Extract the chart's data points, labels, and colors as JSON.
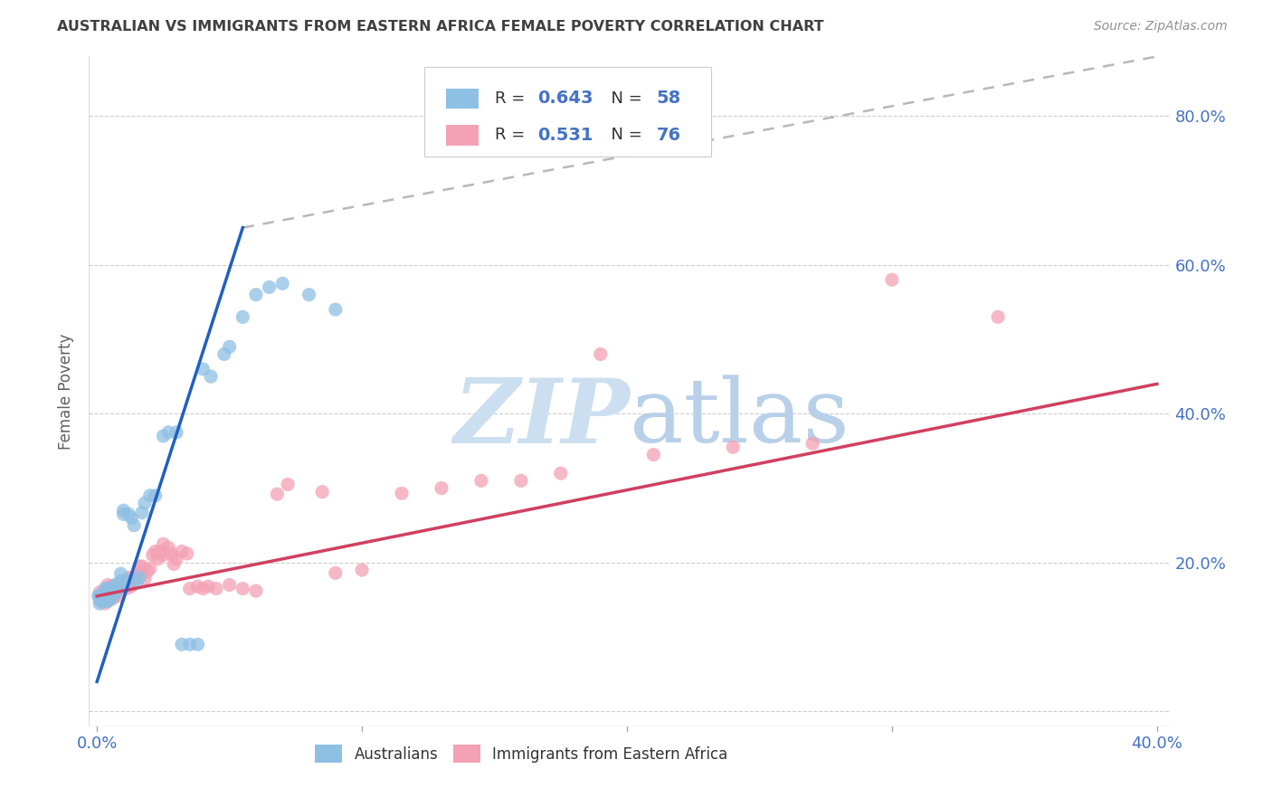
{
  "title": "AUSTRALIAN VS IMMIGRANTS FROM EASTERN AFRICA FEMALE POVERTY CORRELATION CHART",
  "source": "Source: ZipAtlas.com",
  "ylabel": "Female Poverty",
  "xlim": [
    -0.003,
    0.405
  ],
  "ylim": [
    -0.02,
    0.88
  ],
  "yticks": [
    0.0,
    0.2,
    0.4,
    0.6,
    0.8
  ],
  "ytick_labels": [
    "",
    "20.0%",
    "40.0%",
    "60.0%",
    "80.0%"
  ],
  "xticks": [
    0.0,
    0.1,
    0.2,
    0.3,
    0.4
  ],
  "xtick_labels_show": [
    "0.0%",
    "",
    "",
    "",
    "40.0%"
  ],
  "legend_label1": "Australians",
  "legend_label2": "Immigrants from Eastern Africa",
  "r1": "0.643",
  "n1": "58",
  "r2": "0.531",
  "n2": "76",
  "color_australian": "#8ec0e4",
  "color_immigrant": "#f4a0b5",
  "color_line1": "#2060c0",
  "color_line2": "#d04060",
  "color_diag": "#b8b8b8",
  "background_color": "#ffffff",
  "watermark_zip": "ZIP",
  "watermark_atlas": "atlas",
  "watermark_color_zip": "#ccdff0",
  "watermark_color_atlas": "#b8d0e8",
  "tick_color": "#4472c4",
  "title_color": "#404040",
  "source_color": "#909090",
  "ylabel_color": "#606060",
  "aus_line_x0": 0.0,
  "aus_line_y0": 0.04,
  "aus_line_x1": 0.055,
  "aus_line_y1": 0.65,
  "dash_line_x0": 0.055,
  "dash_line_y0": 0.65,
  "dash_line_x1": 0.4,
  "dash_line_y1": 0.88,
  "imm_line_x0": 0.0,
  "imm_line_y0": 0.155,
  "imm_line_x1": 0.4,
  "imm_line_y1": 0.44,
  "aus_x": [
    0.0005,
    0.001,
    0.001,
    0.0015,
    0.002,
    0.002,
    0.0025,
    0.003,
    0.003,
    0.003,
    0.003,
    0.004,
    0.004,
    0.004,
    0.004,
    0.004,
    0.005,
    0.005,
    0.005,
    0.005,
    0.006,
    0.006,
    0.006,
    0.007,
    0.007,
    0.008,
    0.008,
    0.009,
    0.009,
    0.01,
    0.01,
    0.011,
    0.011,
    0.012,
    0.013,
    0.014,
    0.015,
    0.016,
    0.017,
    0.018,
    0.02,
    0.022,
    0.025,
    0.027,
    0.03,
    0.032,
    0.035,
    0.038,
    0.04,
    0.043,
    0.048,
    0.05,
    0.055,
    0.06,
    0.065,
    0.07,
    0.08,
    0.09
  ],
  "aus_y": [
    0.155,
    0.145,
    0.155,
    0.15,
    0.148,
    0.155,
    0.15,
    0.155,
    0.16,
    0.148,
    0.165,
    0.152,
    0.158,
    0.148,
    0.158,
    0.165,
    0.155,
    0.16,
    0.15,
    0.155,
    0.16,
    0.155,
    0.165,
    0.16,
    0.17,
    0.165,
    0.172,
    0.175,
    0.185,
    0.27,
    0.265,
    0.175,
    0.175,
    0.265,
    0.26,
    0.25,
    0.175,
    0.18,
    0.267,
    0.28,
    0.29,
    0.29,
    0.37,
    0.375,
    0.375,
    0.09,
    0.09,
    0.09,
    0.46,
    0.45,
    0.48,
    0.49,
    0.53,
    0.56,
    0.57,
    0.575,
    0.56,
    0.54
  ],
  "imm_x": [
    0.001,
    0.001,
    0.002,
    0.002,
    0.003,
    0.003,
    0.003,
    0.004,
    0.004,
    0.004,
    0.004,
    0.005,
    0.005,
    0.005,
    0.006,
    0.006,
    0.006,
    0.007,
    0.007,
    0.008,
    0.008,
    0.008,
    0.009,
    0.009,
    0.01,
    0.01,
    0.011,
    0.011,
    0.012,
    0.012,
    0.013,
    0.013,
    0.014,
    0.015,
    0.016,
    0.016,
    0.017,
    0.018,
    0.019,
    0.02,
    0.021,
    0.022,
    0.023,
    0.024,
    0.025,
    0.025,
    0.027,
    0.028,
    0.029,
    0.03,
    0.032,
    0.034,
    0.035,
    0.038,
    0.04,
    0.042,
    0.045,
    0.05,
    0.055,
    0.06,
    0.068,
    0.072,
    0.085,
    0.09,
    0.1,
    0.115,
    0.13,
    0.145,
    0.16,
    0.175,
    0.19,
    0.21,
    0.24,
    0.27,
    0.3,
    0.34
  ],
  "imm_y": [
    0.15,
    0.16,
    0.148,
    0.158,
    0.145,
    0.155,
    0.162,
    0.148,
    0.155,
    0.162,
    0.17,
    0.155,
    0.162,
    0.168,
    0.152,
    0.16,
    0.168,
    0.158,
    0.168,
    0.155,
    0.162,
    0.17,
    0.165,
    0.175,
    0.168,
    0.175,
    0.172,
    0.165,
    0.172,
    0.18,
    0.178,
    0.168,
    0.178,
    0.182,
    0.188,
    0.195,
    0.195,
    0.178,
    0.188,
    0.192,
    0.21,
    0.215,
    0.205,
    0.215,
    0.225,
    0.21,
    0.22,
    0.212,
    0.198,
    0.205,
    0.215,
    0.212,
    0.165,
    0.168,
    0.165,
    0.168,
    0.165,
    0.17,
    0.165,
    0.162,
    0.292,
    0.305,
    0.295,
    0.186,
    0.19,
    0.293,
    0.3,
    0.31,
    0.31,
    0.32,
    0.48,
    0.345,
    0.355,
    0.36,
    0.58,
    0.53
  ]
}
